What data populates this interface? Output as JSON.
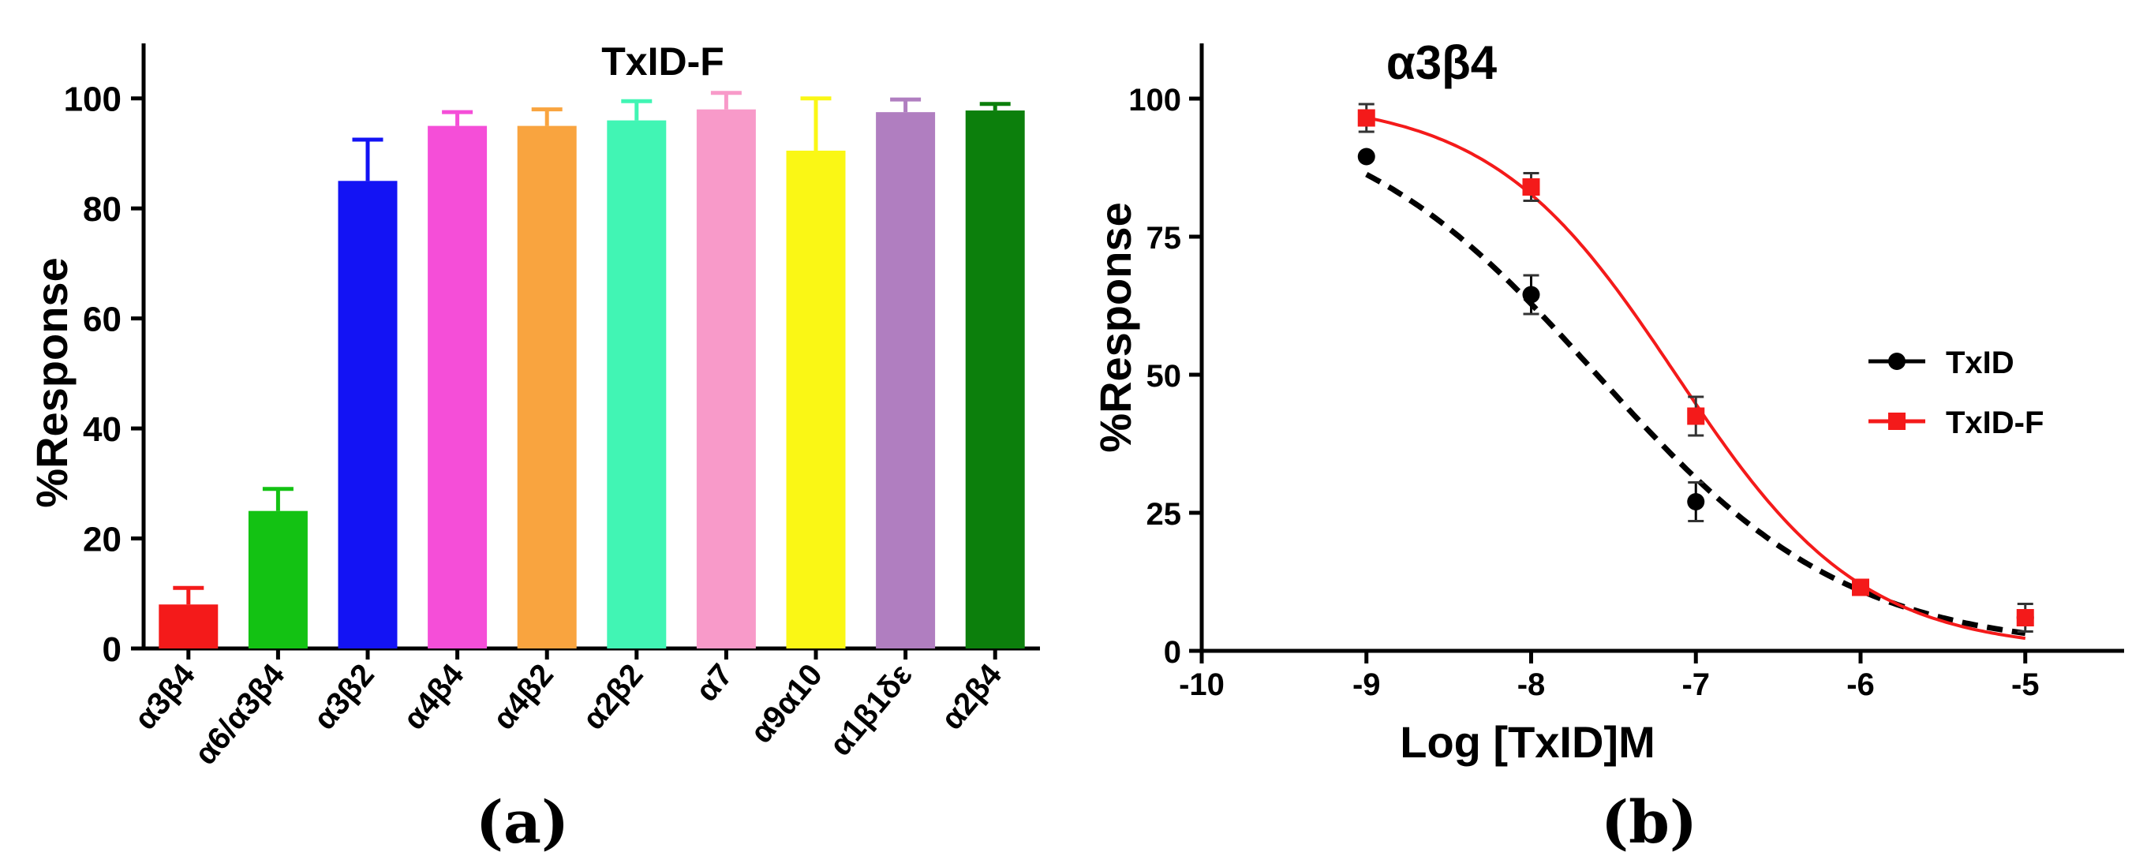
{
  "panels": {
    "a_label": "(a)",
    "b_label": "(b)"
  },
  "chart_data": [
    {
      "type": "bar",
      "title": "TxID-F",
      "xlabel": "",
      "ylabel": "%Response",
      "ylim": [
        0,
        110
      ],
      "yticks": [
        "0",
        "20",
        "40",
        "60",
        "80",
        "100"
      ],
      "categories": [
        "α3β4",
        "α6/α3β4",
        "α3β2",
        "α4β4",
        "α4β2",
        "α2β2",
        "α7",
        "α9α10",
        "α1β1δε",
        "α2β4"
      ],
      "values": [
        8,
        25,
        85,
        95,
        95,
        96,
        98,
        90.5,
        97.5,
        97.8
      ],
      "errors": [
        3,
        4,
        7.5,
        2.5,
        3,
        3.5,
        3,
        9.5,
        2.3,
        1.2
      ],
      "colors": [
        "#f41a1a",
        "#13c213",
        "#1313f4",
        "#f54ed8",
        "#f9a43f",
        "#41f5b4",
        "#f89ac9",
        "#faf715",
        "#b07ec0",
        "#0c7f0c"
      ],
      "grid": false
    },
    {
      "type": "line",
      "title": "α3β4",
      "xlabel": "Log [TxID]M",
      "ylabel": "%Response",
      "xlim": [
        -10,
        -4.4
      ],
      "ylim": [
        0,
        110
      ],
      "xticks": [
        "-10",
        "-9",
        "-8",
        "-7",
        "-6",
        "-5"
      ],
      "yticks": [
        "0",
        "25",
        "50",
        "75",
        "100"
      ],
      "legend_position": "right-middle",
      "series": [
        {
          "name": "TxID",
          "color": "#000000",
          "marker": "circle",
          "line": "dashed",
          "x": [
            -9,
            -8,
            -7,
            -6,
            -5
          ],
          "y": [
            89.5,
            64.5,
            27,
            11.5,
            6
          ],
          "errors": [
            0,
            3.5,
            3.5,
            0,
            0
          ],
          "fit": {
            "ic50_log": -7.6,
            "hill": 0.57
          }
        },
        {
          "name": "TxID-F",
          "color": "#f41a1a",
          "marker": "square",
          "line": "solid",
          "x": [
            -9,
            -8,
            -7,
            -6,
            -5
          ],
          "y": [
            96.5,
            84,
            42.5,
            11.5,
            6
          ],
          "errors": [
            2.5,
            2.5,
            3.5,
            0,
            2.5
          ],
          "fit": {
            "ic50_log": -7.12,
            "hill": 0.77
          }
        }
      ]
    }
  ]
}
